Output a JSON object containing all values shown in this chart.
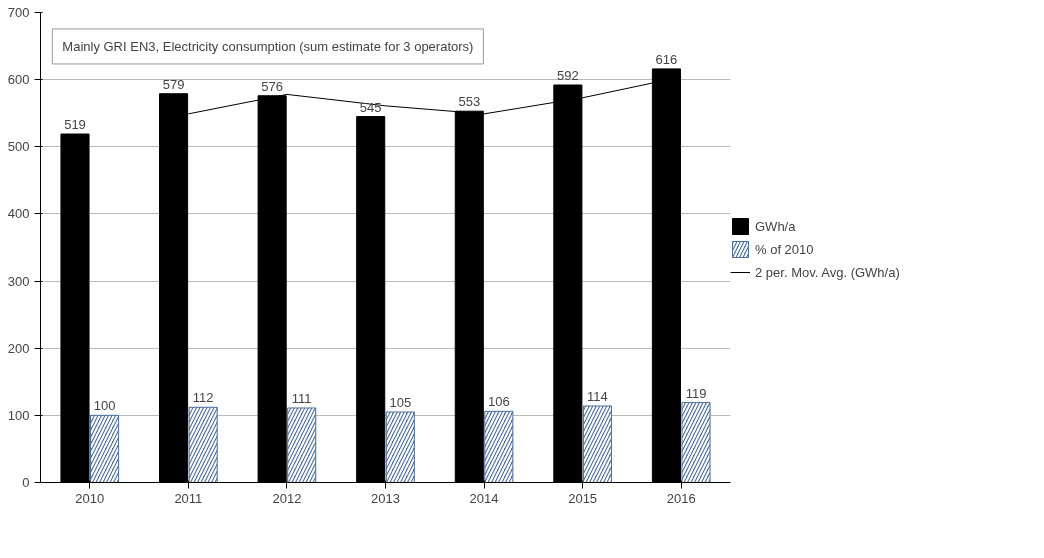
{
  "chart_data": {
    "type": "bar",
    "title": "Mainly GRI EN3, Electricity consumption (sum estimate for 3 operators)",
    "categories": [
      "2010",
      "2011",
      "2012",
      "2013",
      "2014",
      "2015",
      "2016"
    ],
    "series": [
      {
        "name": "GWh/a",
        "color": "#000000",
        "values": [
          519,
          579,
          576,
          545,
          553,
          592,
          616
        ],
        "value_labels": [
          "519",
          "579",
          "576",
          "545",
          "553",
          "592",
          "616"
        ]
      },
      {
        "name": "% of 2010",
        "color": "#4f7099",
        "values": [
          100,
          112,
          111,
          105,
          106,
          114,
          119
        ],
        "value_labels": [
          "100",
          "112",
          "111",
          "105",
          "106",
          "114",
          "119"
        ]
      },
      {
        "name": "2 per. Mov. Avg. (GWh/a)",
        "type": "line",
        "color": "#000000",
        "values": [
          null,
          549,
          578,
          561,
          549,
          573,
          604
        ]
      }
    ],
    "ylim": [
      0,
      700
    ],
    "yticks": [
      0,
      100,
      200,
      300,
      400,
      500,
      600,
      700
    ],
    "grid": "y",
    "legend": "right"
  }
}
